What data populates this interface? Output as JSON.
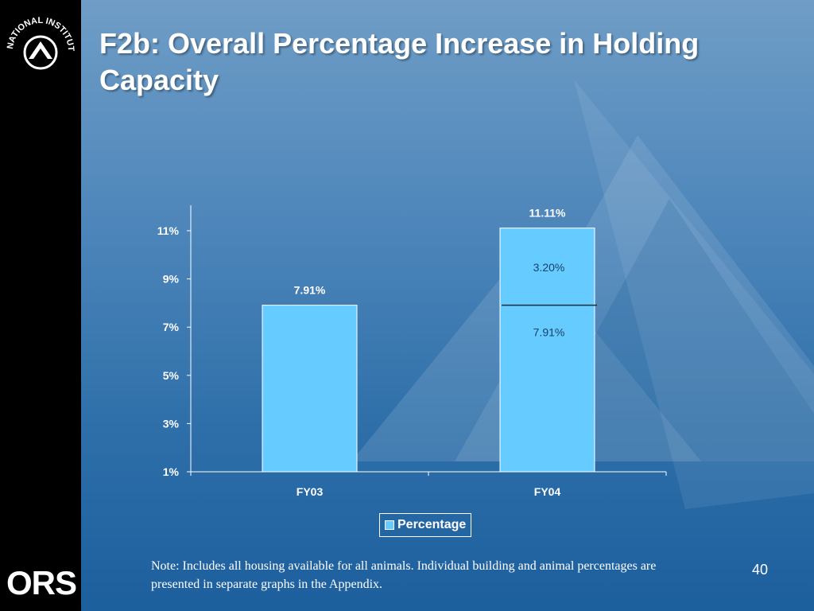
{
  "slide": {
    "title": "F2b:  Overall Percentage Increase in Holding Capacity",
    "logo_top_text": "NATIONAL INSTITUTES OF HEALTH",
    "logo_bottom_text": "ORS",
    "note": "Note:  Includes all housing available for all animals.  Individual building and animal percentages are presented in separate graphs in the Appendix.",
    "page_number": "40"
  },
  "colors": {
    "bar_fill": "#66ccff",
    "text": "#ffffff",
    "segment_label": "#1a3f6b"
  },
  "chart_data": {
    "type": "bar",
    "stacked": true,
    "categories": [
      "FY03",
      "FY04"
    ],
    "series": [
      {
        "name": "Percentage",
        "values": [
          7.91,
          7.91
        ]
      },
      {
        "values": [
          0,
          3.2
        ]
      }
    ],
    "totals": [
      7.91,
      11.11
    ],
    "total_labels": [
      "7.91%",
      "11.11%"
    ],
    "segment_labels": {
      "FY04": [
        "7.91%",
        "3.20%"
      ]
    },
    "yticks": [
      "1%",
      "3%",
      "5%",
      "7%",
      "9%",
      "11%"
    ],
    "ylim": [
      1,
      12
    ],
    "legend": [
      "Percentage"
    ],
    "legend_position": "bottom",
    "grid": false
  }
}
